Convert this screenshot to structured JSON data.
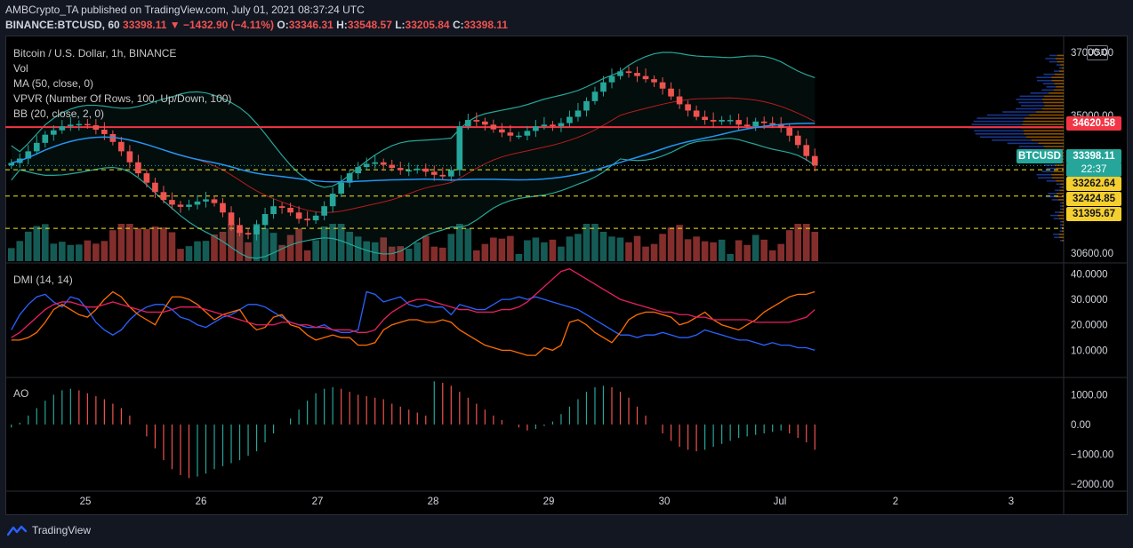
{
  "header": {
    "author": "AMBCrypto_TA",
    "published_text": "published on TradingView.com, July 01, 2021 08:37:24 UTC",
    "symbol": "BINANCE:BTCUSD, 60",
    "change": "33398.11 ▼ −1432.90 (−4.11%)",
    "o_label": "O:",
    "o": "33346.31",
    "h_label": "H:",
    "h": "33548.57",
    "l_label": "L:",
    "l": "33205.84",
    "c_label": "C:",
    "c": "33398.11"
  },
  "legend": {
    "title": "Bitcoin / U.S. Dollar, 1h, BINANCE",
    "vol": "Vol",
    "ma": "MA (50, close, 0)",
    "vpvr": "VPVR (Number Of Rows, 100, Up/Down, 100)",
    "bb": "BB (20, close, 2, 0)",
    "dmi": "DMI (14, 14)",
    "ao": "AO"
  },
  "currency": "USD",
  "price_labels": {
    "resistance": "34620.58",
    "current": "33398.11",
    "current_symbol": "BTCUSD",
    "countdown": "22:37",
    "support1": "33262.64",
    "support2": "32424.85",
    "support3": "31395.67"
  },
  "footer": {
    "brand": "TradingView"
  },
  "colors": {
    "up": "#26a69a",
    "down": "#ef5350",
    "resistance": "#f23645",
    "support": "#f5e91e",
    "ma": "#2196f3",
    "bb_band": "#26a69a",
    "dmi_plus": "#2962ff",
    "dmi_minus": "#ff6d00",
    "adx": "#e91e63",
    "label_yellow": "#f5cf2e"
  },
  "chart_data": [
    {
      "type": "candlestick",
      "name": "price",
      "x_ticks": [
        "25",
        "26",
        "27",
        "28",
        "29",
        "30",
        "Jul",
        "2",
        "3"
      ],
      "y_ticks": [
        37000.0,
        35000.0,
        30600.0
      ],
      "y_tick_labels": [
        "37000.00",
        "35000.00",
        "30600.00"
      ],
      "ylim": [
        30350,
        37400
      ],
      "close_series": [
        33480,
        33620,
        33850,
        34120,
        34380,
        34520,
        34650,
        34700,
        34720,
        34680,
        34540,
        34400,
        34150,
        33850,
        33500,
        33150,
        32850,
        32550,
        32300,
        32150,
        32080,
        32150,
        32250,
        32320,
        32200,
        31900,
        31500,
        31250,
        31200,
        31500,
        31850,
        32100,
        32050,
        31900,
        31700,
        31650,
        31800,
        32100,
        32500,
        32850,
        33150,
        33350,
        33450,
        33500,
        33420,
        33320,
        33250,
        33250,
        33300,
        33200,
        33100,
        33050,
        33250,
        34650,
        34850,
        34800,
        34700,
        34550,
        34450,
        34350,
        34350,
        34500,
        34650,
        34700,
        34650,
        34750,
        34950,
        35150,
        35450,
        35750,
        36050,
        36250,
        36400,
        36350,
        36250,
        36150,
        36050,
        35850,
        35600,
        35350,
        35150,
        34950,
        34850,
        34800,
        34850,
        34850,
        34700,
        34650,
        34800,
        34750,
        34700,
        34600,
        34350,
        34050,
        33700,
        33400
      ],
      "resistance": 34620.58,
      "supports": [
        33262.64,
        32424.85,
        31395.67
      ],
      "current": 33398.11
    },
    {
      "type": "line",
      "name": "DMI (14, 14)",
      "y_ticks": [
        40.0,
        30.0,
        20.0,
        10.0
      ],
      "y_tick_labels": [
        "40.0000",
        "30.0000",
        "20.0000",
        "10.0000"
      ],
      "ylim": [
        0,
        44
      ],
      "series": [
        {
          "color": "#2962ff",
          "values": [
            18,
            24,
            28,
            31,
            32,
            29,
            27,
            31,
            30,
            26,
            21,
            18,
            16,
            18,
            22,
            25,
            27,
            28,
            28,
            26,
            23,
            22,
            20,
            19,
            21,
            23,
            24,
            26,
            28,
            28,
            27,
            25,
            23,
            21,
            20,
            19,
            19,
            20,
            18,
            17,
            17,
            18,
            33,
            32,
            29,
            30,
            31,
            28,
            27,
            28,
            27,
            27,
            24,
            28,
            27,
            26,
            26,
            28,
            30,
            30,
            31,
            30,
            31,
            30,
            29,
            28,
            27,
            26,
            24,
            22,
            20,
            18,
            16,
            16,
            15,
            16,
            16,
            17,
            16,
            15,
            15,
            16,
            18,
            17,
            16,
            15,
            14,
            14,
            13,
            12,
            13,
            12,
            12,
            11,
            11,
            10
          ]
        },
        {
          "color": "#ff6d00",
          "values": [
            14,
            14,
            15,
            17,
            21,
            26,
            28,
            26,
            24,
            23,
            26,
            30,
            33,
            31,
            27,
            24,
            22,
            20,
            26,
            31,
            31,
            30,
            28,
            25,
            22,
            24,
            25,
            26,
            21,
            18,
            19,
            23,
            24,
            20,
            19,
            16,
            14,
            15,
            16,
            15,
            15,
            12,
            12,
            13,
            18,
            20,
            21,
            22,
            22,
            21,
            21,
            22,
            21,
            18,
            16,
            14,
            12,
            11,
            10,
            10,
            9,
            8,
            8,
            11,
            10,
            12,
            21,
            22,
            20,
            17,
            15,
            13,
            17,
            22,
            24,
            25,
            25,
            24,
            23,
            20,
            21,
            23,
            25,
            22,
            20,
            19,
            18,
            20,
            22,
            25,
            27,
            29,
            31,
            32,
            32,
            33
          ]
        },
        {
          "color": "#e91e63",
          "values": [
            15,
            17,
            20,
            23,
            26,
            28,
            29,
            29,
            28,
            27,
            27,
            28,
            29,
            28,
            27,
            26,
            25,
            25,
            25,
            26,
            27,
            27,
            27,
            26,
            25,
            24,
            23,
            22,
            21,
            20,
            20,
            20,
            21,
            21,
            20,
            20,
            19,
            19,
            18,
            18,
            18,
            17,
            17,
            18,
            22,
            25,
            27,
            29,
            30,
            30,
            29,
            28,
            27,
            26,
            26,
            25,
            25,
            25,
            26,
            26,
            27,
            29,
            32,
            35,
            38,
            41,
            42,
            40,
            38,
            36,
            34,
            32,
            30,
            29,
            28,
            27,
            26,
            25,
            25,
            24,
            24,
            23,
            23,
            22,
            22,
            22,
            22,
            22,
            21,
            21,
            21,
            21,
            21,
            22,
            23,
            26
          ]
        }
      ]
    },
    {
      "type": "bar",
      "name": "AO",
      "y_ticks": [
        1000.0,
        0.0,
        -1000.0,
        -2000.0
      ],
      "y_tick_labels": [
        "1000.00",
        "0.00",
        "−1000.00",
        "−2000.00"
      ],
      "ylim": [
        -2150,
        1550
      ],
      "values": [
        -100,
        60,
        300,
        550,
        800,
        1000,
        1150,
        1200,
        1150,
        1050,
        950,
        850,
        700,
        550,
        300,
        0,
        -400,
        -800,
        -1200,
        -1500,
        -1700,
        -1800,
        -1750,
        -1650,
        -1500,
        -1400,
        -1300,
        -1200,
        -1050,
        -900,
        -600,
        -300,
        0,
        200,
        500,
        800,
        1050,
        1200,
        1250,
        1200,
        1100,
        1000,
        950,
        900,
        850,
        700,
        600,
        500,
        400,
        300,
        1450,
        1400,
        1300,
        1100,
        900,
        700,
        500,
        300,
        150,
        0,
        -100,
        -200,
        -150,
        -50,
        100,
        350,
        600,
        850,
        1100,
        1250,
        1300,
        1250,
        1100,
        900,
        600,
        300,
        0,
        -300,
        -550,
        -750,
        -850,
        -900,
        -850,
        -750,
        -650,
        -550,
        -450,
        -400,
        -350,
        -300,
        -250,
        -200,
        -300,
        -450,
        -600,
        -850
      ]
    }
  ]
}
